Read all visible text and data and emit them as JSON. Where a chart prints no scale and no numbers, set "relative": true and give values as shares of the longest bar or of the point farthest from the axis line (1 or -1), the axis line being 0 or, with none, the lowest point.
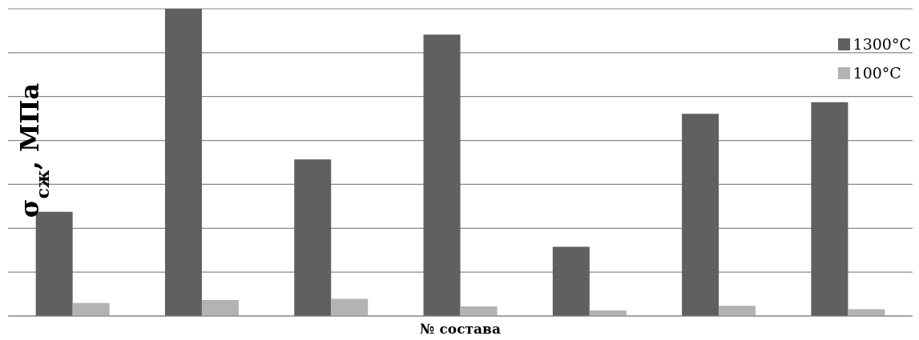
{
  "chart_data": {
    "type": "bar",
    "relative": true,
    "ylabel": "σ$_{сж}$, МПа",
    "xlabel": "№ состава",
    "categories": [
      null,
      null,
      null,
      null,
      null,
      null,
      null
    ],
    "series": [
      {
        "name": "1300°C",
        "color": "#606060",
        "values": [
          0.339,
          1,
          0.51,
          0.916,
          0.225,
          0.658,
          0.696
        ]
      },
      {
        "name": "100°C",
        "color": "#b3b3b3",
        "values": [
          0.042,
          0.052,
          0.056,
          0.031,
          0.018,
          0.033,
          0.022
        ]
      }
    ],
    "grid": "y",
    "legend": "top right"
  }
}
